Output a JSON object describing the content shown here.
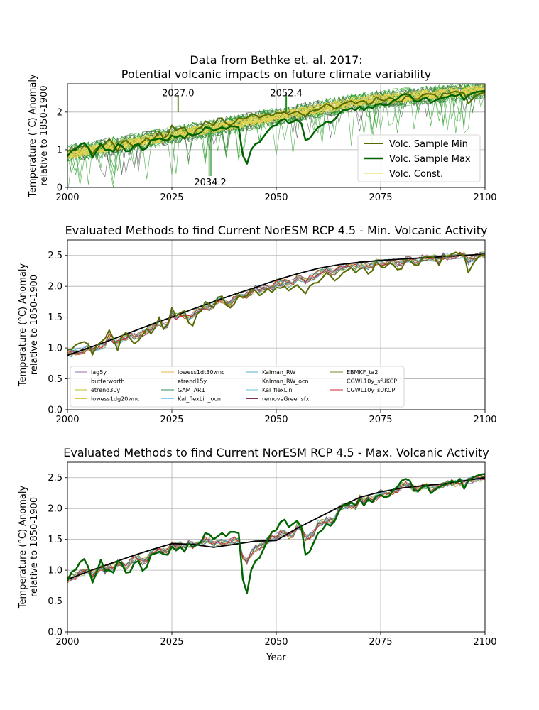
{
  "colors": {
    "grid": "#b0b0b0",
    "ensemble_green": "#2ca02c",
    "ensemble_gray": "#555555",
    "volc_min": "#556b00",
    "volc_max": "#006400",
    "volc_const": "#e8d44d",
    "fit": "#000000"
  },
  "chart_data": [
    {
      "type": "line",
      "title": "Data from Bethke et. al. 2017:\nPotential volcanic impacts on future climate variability",
      "xlabel": "",
      "ylabel": "Temperature (°C) Anomaly\nrelative to 1850-1900",
      "xlim": [
        2000,
        2100
      ],
      "ylim": [
        0,
        2.75
      ],
      "xticks": [
        2000,
        2025,
        2050,
        2075,
        2100
      ],
      "yticks": [
        0,
        1,
        2
      ],
      "grid": true,
      "legend_position": "lower right",
      "legend": [
        "Volc. Sample Min",
        "Volc. Sample Max",
        "Volc. Const."
      ],
      "annotations": [
        {
          "text": "2027.0",
          "x": 2026.5,
          "color": "#6b8e23",
          "position": "top"
        },
        {
          "text": "2052.4",
          "x": 2052.4,
          "color": "#228b22",
          "position": "top"
        },
        {
          "text": "2034.2",
          "x": 2034.2,
          "color": "#228b22",
          "position": "bottom"
        }
      ],
      "series": [
        {
          "name": "Volc. Sample Min",
          "color": "#556b00",
          "width": 2,
          "x_start": 2000,
          "x_step": 1,
          "values": [
            0.97,
            0.98,
            1.05,
            1.08,
            1.1,
            1.06,
            0.89,
            1.04,
            1.1,
            1.15,
            1.29,
            1.15,
            0.96,
            1.19,
            1.25,
            1.15,
            1.07,
            1.12,
            1.21,
            1.31,
            1.23,
            1.33,
            1.5,
            1.3,
            1.38,
            1.65,
            1.52,
            1.57,
            1.6,
            1.41,
            1.36,
            1.55,
            1.6,
            1.75,
            1.71,
            1.65,
            1.82,
            1.84,
            1.7,
            1.65,
            1.72,
            1.85,
            1.82,
            1.85,
            1.95,
            1.93,
            1.85,
            1.9,
            1.96,
            1.9,
            1.98,
            1.97,
            2.0,
            1.93,
            1.98,
            2.02,
            1.95,
            1.88,
            2.0,
            2.05,
            2.06,
            2.13,
            2.22,
            2.17,
            2.09,
            2.14,
            2.22,
            2.26,
            2.3,
            2.22,
            2.28,
            2.3,
            2.2,
            2.25,
            2.4,
            2.32,
            2.3,
            2.38,
            2.35,
            2.27,
            2.28,
            2.42,
            2.41,
            2.35,
            2.34,
            2.45,
            2.48,
            2.48,
            2.46,
            2.34,
            2.5,
            2.48,
            2.52,
            2.55,
            2.52,
            2.5,
            2.22,
            2.35,
            2.45,
            2.5,
            2.52,
            2.56
          ]
        },
        {
          "name": "Volc. Sample Max",
          "color": "#006400",
          "width": 2.5,
          "x_start": 2000,
          "x_step": 1,
          "values": [
            0.83,
            0.97,
            1.01,
            1.13,
            1.18,
            1.05,
            0.8,
            0.97,
            1.17,
            0.99,
            1.0,
            0.96,
            1.15,
            1.11,
            0.96,
            0.97,
            1.12,
            1.15,
            0.99,
            1.05,
            1.25,
            1.27,
            1.3,
            1.26,
            1.25,
            1.38,
            1.32,
            1.38,
            1.3,
            1.43,
            1.38,
            1.41,
            1.46,
            1.6,
            1.58,
            1.5,
            1.55,
            1.6,
            1.55,
            1.62,
            1.62,
            1.6,
            0.85,
            0.63,
            1.0,
            1.15,
            1.2,
            1.35,
            1.5,
            1.62,
            1.65,
            1.78,
            1.82,
            1.7,
            1.75,
            1.8,
            1.7,
            1.25,
            1.3,
            1.45,
            1.6,
            1.65,
            1.75,
            1.72,
            1.8,
            1.95,
            2.05,
            2.06,
            2.1,
            2.05,
            2.15,
            2.05,
            2.15,
            2.1,
            2.2,
            2.22,
            2.18,
            2.2,
            2.3,
            2.35,
            2.45,
            2.48,
            2.45,
            2.3,
            2.28,
            2.35,
            2.38,
            2.25,
            2.3,
            2.35,
            2.38,
            2.4,
            2.45,
            2.42,
            2.48,
            2.32,
            2.45,
            2.5,
            2.53,
            2.55,
            2.56
          ]
        },
        {
          "name": "Volc. Const.",
          "color": "#e8d44d",
          "width": 1,
          "x_start": 2000,
          "x_step": 1,
          "values": [
            0.88,
            0.9,
            0.92,
            0.95,
            0.97,
            0.99,
            1.0,
            1.02,
            1.04,
            1.06,
            1.08,
            1.1,
            1.12,
            1.14,
            1.16,
            1.18,
            1.2,
            1.22,
            1.24,
            1.26,
            1.28,
            1.3,
            1.32,
            1.34,
            1.36,
            1.38,
            1.4,
            1.42,
            1.44,
            1.46,
            1.48,
            1.5,
            1.52,
            1.54,
            1.56,
            1.58,
            1.6,
            1.62,
            1.64,
            1.66,
            1.68,
            1.7,
            1.72,
            1.74,
            1.76,
            1.78,
            1.8,
            1.82,
            1.84,
            1.86,
            1.88,
            1.9,
            1.92,
            1.94,
            1.96,
            1.98,
            2.0,
            2.02,
            2.04,
            2.06,
            2.08,
            2.1,
            2.12,
            2.14,
            2.16,
            2.18,
            2.2,
            2.22,
            2.24,
            2.26,
            2.28,
            2.3,
            2.31,
            2.32,
            2.33,
            2.34,
            2.35,
            2.36,
            2.37,
            2.38,
            2.39,
            2.4,
            2.41,
            2.42,
            2.43,
            2.44,
            2.45,
            2.46,
            2.47,
            2.48,
            2.49,
            2.5,
            2.51,
            2.52,
            2.53,
            2.54,
            2.55,
            2.56,
            2.57,
            2.58,
            2.59
          ]
        }
      ]
    },
    {
      "type": "line",
      "title": "Evaluated Methods to find Current NorESM RCP 4.5 - Min. Volcanic Activity",
      "xlabel": "",
      "ylabel": "Temperature (°C) Anomaly\nrelative to 1850-1900",
      "xlim": [
        2000,
        2100
      ],
      "ylim": [
        0,
        2.75
      ],
      "xticks": [
        2000,
        2025,
        2050,
        2075,
        2100
      ],
      "yticks": [
        0.0,
        0.5,
        1.0,
        1.5,
        2.0,
        2.5
      ],
      "grid": true,
      "legend_position": "lower center",
      "legend": [
        {
          "name": "lag5y",
          "color": "#8c6bb1"
        },
        {
          "name": "butterworth",
          "color": "#4d4d4d"
        },
        {
          "name": "etrend30y",
          "color": "#bcbd22"
        },
        {
          "name": "lowess1dg20wnc",
          "color": "#d4c84a"
        },
        {
          "name": "lowess1dt30wnc",
          "color": "#e6b84d"
        },
        {
          "name": "etrend15y",
          "color": "#c9a227"
        },
        {
          "name": "GAM_AR1",
          "color": "#2e8b57"
        },
        {
          "name": "Kal_flexLin_ocn",
          "color": "#87ceeb"
        },
        {
          "name": "Kalman_RW",
          "color": "#5fa8d3"
        },
        {
          "name": "Kalman_RW_ocn",
          "color": "#4682b4"
        },
        {
          "name": "Kal_flexLin",
          "color": "#66c2d9"
        },
        {
          "name": "removeGreensfx",
          "color": "#7b2d5b"
        },
        {
          "name": "EBMKF_ta2",
          "color": "#6b8e23"
        },
        {
          "name": "CGWL10y_sfUKCP",
          "color": "#b22222"
        },
        {
          "name": "CGWL10y_sUKCP",
          "color": "#d62728"
        }
      ],
      "series": [
        {
          "name": "",
          "color": "#000000",
          "width": 1.8,
          "role": "fit",
          "x_start": 2000,
          "x_step": 5,
          "values": [
            0.88,
            1.0,
            1.12,
            1.25,
            1.38,
            1.5,
            1.63,
            1.75,
            1.87,
            1.98,
            2.1,
            2.2,
            2.29,
            2.35,
            2.39,
            2.42,
            2.44,
            2.46,
            2.48,
            2.5,
            2.52
          ]
        }
      ]
    },
    {
      "type": "line",
      "title": "Evaluated Methods to find Current NorESM RCP 4.5 - Max. Volcanic Activity",
      "xlabel": "Year",
      "ylabel": "Temperature (°C) Anomaly\nrelative to 1850-1900",
      "xlim": [
        2000,
        2100
      ],
      "ylim": [
        0,
        2.75
      ],
      "xticks": [
        2000,
        2025,
        2050,
        2075,
        2100
      ],
      "yticks": [
        0.0,
        0.5,
        1.0,
        1.5,
        2.0,
        2.5
      ],
      "grid": true,
      "series": [
        {
          "name": "",
          "color": "#000000",
          "width": 1.8,
          "role": "fit",
          "x_start": 2000,
          "x_step": 5,
          "values": [
            0.85,
            0.98,
            1.1,
            1.22,
            1.33,
            1.43,
            1.42,
            1.37,
            1.42,
            1.47,
            1.48,
            1.68,
            1.85,
            2.02,
            2.18,
            2.27,
            2.33,
            2.37,
            2.4,
            2.45,
            2.5
          ]
        }
      ]
    }
  ]
}
